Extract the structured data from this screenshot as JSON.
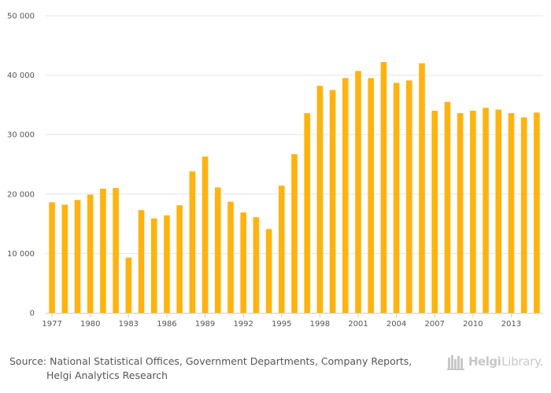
{
  "chart_data": {
    "type": "bar",
    "title": "",
    "xlabel": "",
    "ylabel": "",
    "ylim": [
      0,
      50000
    ],
    "grid": true,
    "legend": "none",
    "bar_color": "#FFB30F",
    "grid_color": "#e6e6e6",
    "y_ticks": [
      {
        "value": 0,
        "label": "0"
      },
      {
        "value": 10000,
        "label": "10 000"
      },
      {
        "value": 20000,
        "label": "20 000"
      },
      {
        "value": 30000,
        "label": "30 000"
      },
      {
        "value": 40000,
        "label": "40 000"
      },
      {
        "value": 50000,
        "label": "50 000"
      }
    ],
    "x_tick_labels": [
      "1977",
      "1980",
      "1983",
      "1986",
      "1989",
      "1992",
      "1995",
      "1998",
      "2001",
      "2004",
      "2007",
      "2010",
      "2013"
    ],
    "categories": [
      "1977",
      "1978",
      "1979",
      "1980",
      "1981",
      "1982",
      "1983",
      "1984",
      "1985",
      "1986",
      "1987",
      "1988",
      "1989",
      "1990",
      "1991",
      "1992",
      "1993",
      "1994",
      "1995",
      "1996",
      "1997",
      "1998",
      "1999",
      "2000",
      "2001",
      "2002",
      "2003",
      "2004",
      "2005",
      "2006",
      "2007",
      "2008",
      "2009",
      "2010",
      "2011",
      "2012",
      "2013",
      "2014",
      "2015"
    ],
    "values": [
      18600,
      18200,
      19000,
      19900,
      20900,
      21000,
      9300,
      17300,
      15900,
      16400,
      18100,
      23800,
      26300,
      21100,
      18700,
      16900,
      16100,
      14100,
      21400,
      26700,
      33600,
      38200,
      37500,
      39500,
      40700,
      39500,
      42200,
      38700,
      39100,
      42000,
      34000,
      35500,
      33600,
      34000,
      34500,
      34200,
      33600,
      32900,
      33700
    ]
  },
  "footer": {
    "source_line1": "Source: National Statistical Offices, Government Departments, Company Reports,",
    "source_line2": "Helgi Analytics Research"
  },
  "brand": {
    "name": "Helgi",
    "sub": "Library."
  }
}
